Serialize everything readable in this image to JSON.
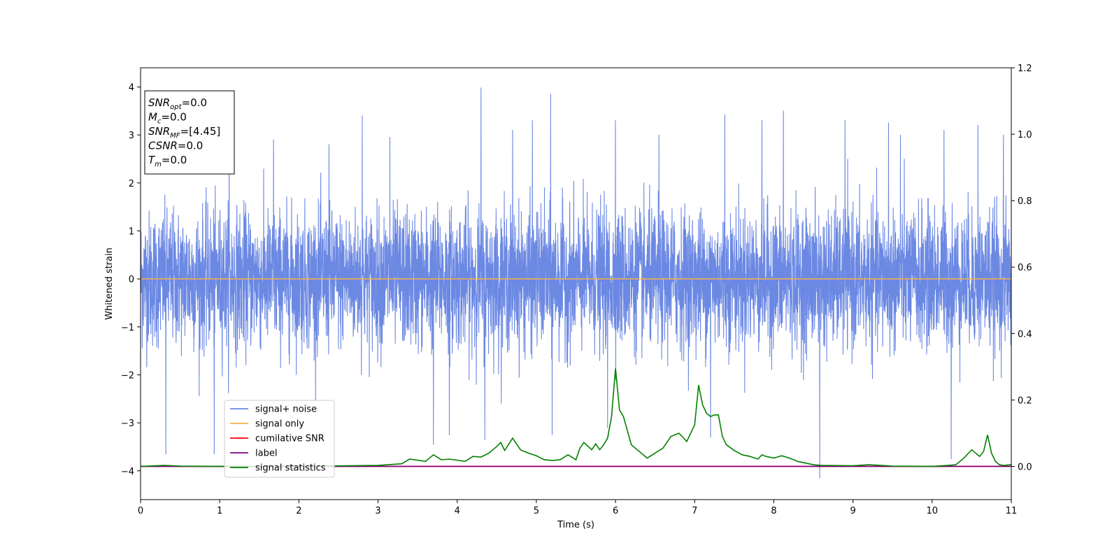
{
  "chart_data": {
    "type": "line",
    "xlabel": "Time (s)",
    "ylabel": "Whitened strain",
    "xlim": [
      0,
      11
    ],
    "ylim": [
      -4.6,
      4.4
    ],
    "y2lim": [
      -0.1,
      1.2
    ],
    "x_ticks": [
      0,
      1,
      2,
      3,
      4,
      5,
      6,
      7,
      8,
      9,
      10,
      11
    ],
    "y_ticks": [
      -4,
      -3,
      -2,
      -1,
      0,
      1,
      2,
      3,
      4
    ],
    "y2_ticks": [
      "0.0",
      "0.2",
      "0.4",
      "0.6",
      "0.8",
      "1.0",
      "1.2"
    ],
    "grid": false,
    "legend_position": "lower-left",
    "series": [
      {
        "name": "signal+ noise",
        "axis": "left",
        "color": "#6b88e3",
        "description_values": "dense whitened noise band, mostly within about ±1.5 with spikes reaching about +4.0 and -4.2",
        "noise_std": 0.7,
        "spikes": [
          [
            0.32,
            -3.65
          ],
          [
            0.93,
            -3.65
          ],
          [
            1.12,
            2.5
          ],
          [
            1.68,
            2.9
          ],
          [
            2.38,
            2.8
          ],
          [
            2.8,
            3.4
          ],
          [
            3.15,
            2.95
          ],
          [
            3.7,
            -3.45
          ],
          [
            3.9,
            -3.25
          ],
          [
            4.3,
            3.98
          ],
          [
            4.35,
            -3.35
          ],
          [
            4.7,
            3.1
          ],
          [
            4.95,
            3.3
          ],
          [
            5.18,
            3.85
          ],
          [
            5.2,
            -3.25
          ],
          [
            5.9,
            -3.1
          ],
          [
            6.0,
            3.3
          ],
          [
            6.55,
            3.0
          ],
          [
            7.2,
            -3.3
          ],
          [
            7.38,
            3.42
          ],
          [
            7.85,
            3.3
          ],
          [
            8.12,
            3.5
          ],
          [
            8.58,
            -4.15
          ],
          [
            8.9,
            3.3
          ],
          [
            9.45,
            3.25
          ],
          [
            9.6,
            3.0
          ],
          [
            10.15,
            3.1
          ],
          [
            10.24,
            -3.75
          ],
          [
            10.58,
            3.2
          ],
          [
            10.9,
            3.0
          ]
        ]
      },
      {
        "name": "signal only",
        "axis": "left",
        "color": "#f5b24a",
        "x": [
          0,
          11
        ],
        "y": [
          0,
          0
        ]
      },
      {
        "name": "cumilative SNR",
        "axis": "right",
        "color": "#ff0000",
        "x": [
          0,
          11
        ],
        "y": [
          0,
          0
        ]
      },
      {
        "name": "label",
        "axis": "right",
        "color": "#800080",
        "x": [
          0,
          11
        ],
        "y": [
          0,
          0
        ]
      },
      {
        "name": "signal statistics",
        "axis": "right",
        "color": "#008000",
        "x": [
          0,
          0.3,
          0.5,
          1.0,
          2.0,
          3.0,
          3.3,
          3.4,
          3.6,
          3.7,
          3.8,
          3.9,
          4.1,
          4.2,
          4.3,
          4.4,
          4.5,
          4.55,
          4.6,
          4.7,
          4.8,
          4.9,
          5.0,
          5.1,
          5.2,
          5.3,
          5.4,
          5.5,
          5.55,
          5.6,
          5.7,
          5.75,
          5.8,
          5.85,
          5.9,
          5.95,
          6.0,
          6.05,
          6.1,
          6.2,
          6.3,
          6.4,
          6.5,
          6.6,
          6.7,
          6.8,
          6.85,
          6.9,
          7.0,
          7.05,
          7.1,
          7.15,
          7.2,
          7.25,
          7.3,
          7.35,
          7.4,
          7.5,
          7.6,
          7.7,
          7.8,
          7.85,
          7.9,
          8.0,
          8.1,
          8.2,
          8.3,
          8.5,
          8.6,
          9.0,
          9.2,
          9.5,
          10.0,
          10.2,
          10.3,
          10.4,
          10.5,
          10.6,
          10.65,
          10.7,
          10.75,
          10.8,
          10.85,
          10.9,
          11.0
        ],
        "y": [
          0.0,
          0.003,
          0.001,
          0.0,
          0.0,
          0.003,
          0.008,
          0.022,
          0.015,
          0.035,
          0.02,
          0.022,
          0.015,
          0.03,
          0.028,
          0.04,
          0.06,
          0.072,
          0.048,
          0.085,
          0.05,
          0.04,
          0.032,
          0.02,
          0.018,
          0.02,
          0.035,
          0.02,
          0.055,
          0.072,
          0.05,
          0.068,
          0.05,
          0.065,
          0.085,
          0.15,
          0.295,
          0.17,
          0.15,
          0.065,
          0.045,
          0.025,
          0.04,
          0.055,
          0.09,
          0.1,
          0.088,
          0.075,
          0.125,
          0.245,
          0.185,
          0.16,
          0.15,
          0.155,
          0.155,
          0.09,
          0.065,
          0.048,
          0.035,
          0.03,
          0.022,
          0.035,
          0.03,
          0.025,
          0.032,
          0.025,
          0.015,
          0.005,
          0.003,
          0.002,
          0.005,
          0.001,
          0.0,
          0.003,
          0.005,
          0.025,
          0.05,
          0.03,
          0.045,
          0.095,
          0.04,
          0.015,
          0.005,
          0.003,
          0.005
        ]
      }
    ],
    "info_box": {
      "lines": [
        {
          "main": "SNR",
          "sub": "opt",
          "rest": "=0.0"
        },
        {
          "main": "M",
          "sub": "c",
          "rest": "=0.0"
        },
        {
          "main": "SNR",
          "sub": "MF",
          "rest": "=[4.45]"
        },
        {
          "main": "CSNR",
          "sub": "",
          "rest": "=0.0"
        },
        {
          "main": "T",
          "sub": "m",
          "rest": "=0.0"
        }
      ]
    }
  }
}
